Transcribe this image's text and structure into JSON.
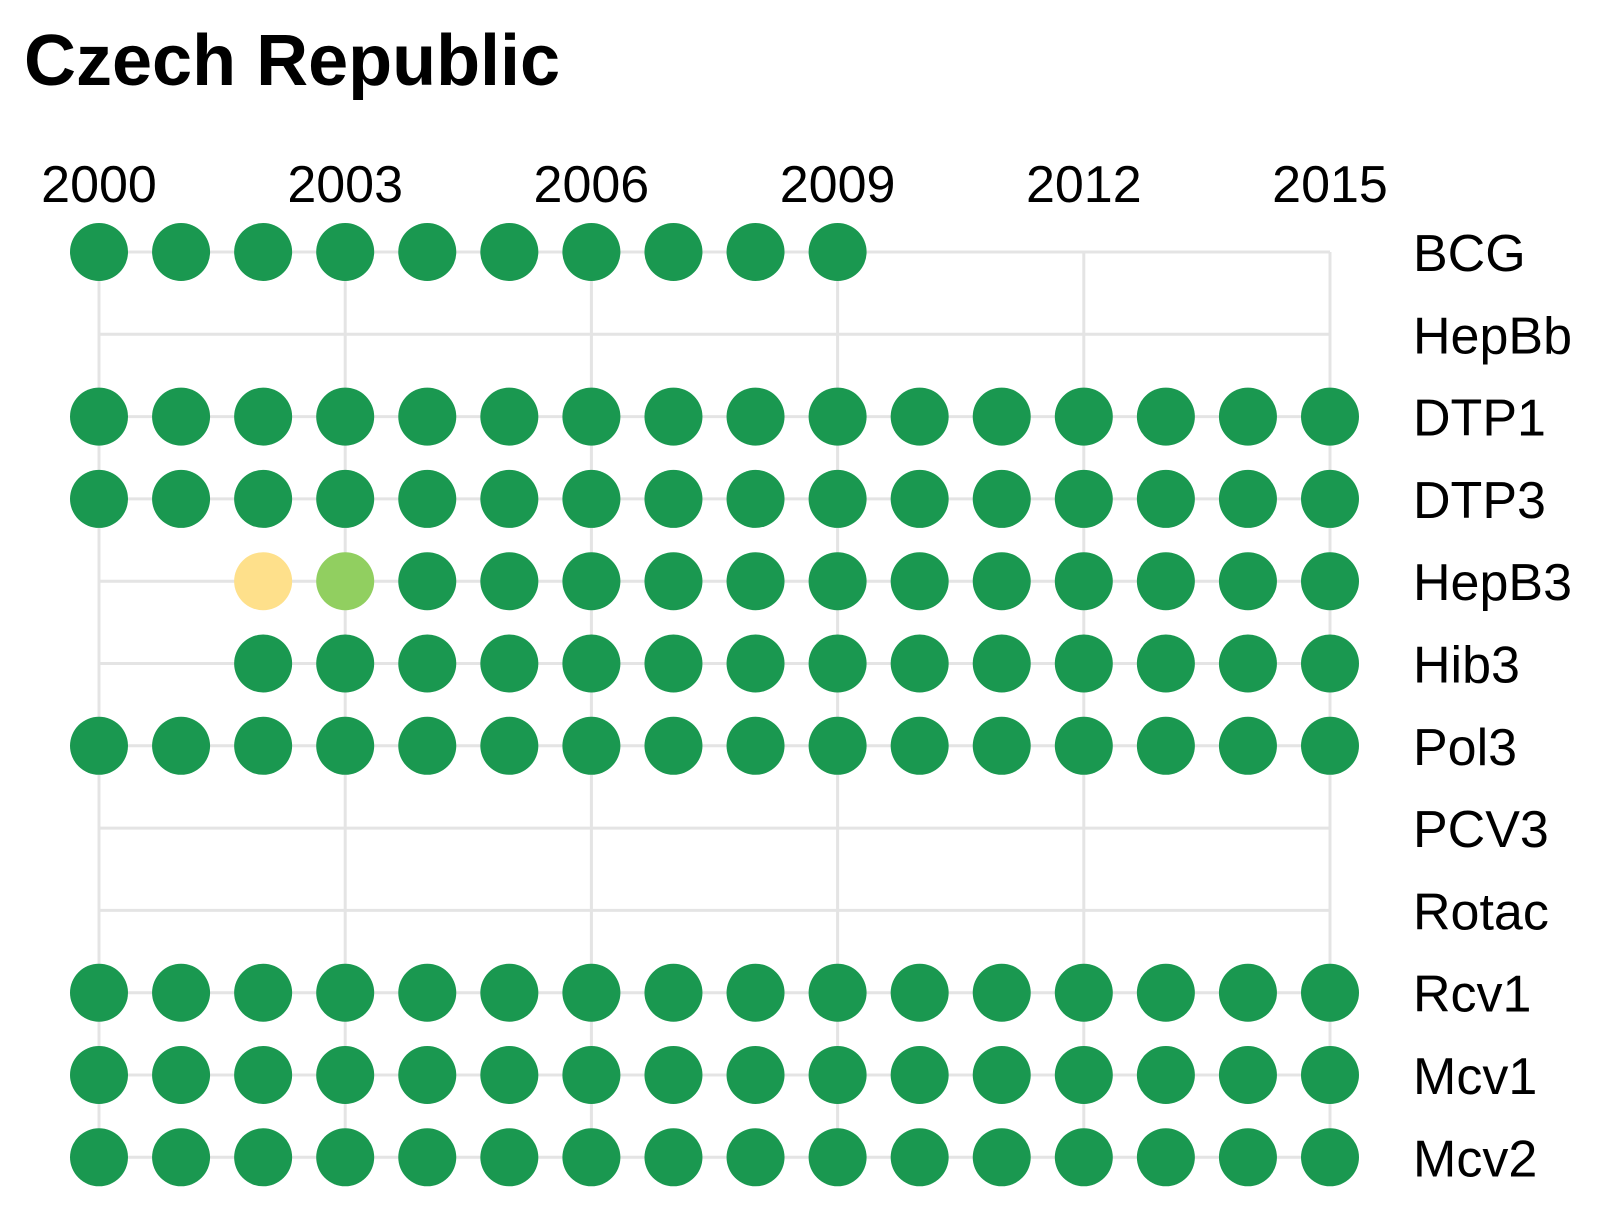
{
  "chart_data": {
    "type": "scatter",
    "title": "Czech Republic",
    "years": [
      2000,
      2001,
      2002,
      2003,
      2004,
      2005,
      2006,
      2007,
      2008,
      2009,
      2010,
      2011,
      2012,
      2013,
      2014,
      2015
    ],
    "x_tick_labels": [
      "2000",
      "2003",
      "2006",
      "2009",
      "2012",
      "2015"
    ],
    "x_tick_values": [
      2000,
      2003,
      2006,
      2009,
      2012,
      2015
    ],
    "xlim": [
      2000,
      2015
    ],
    "grid": true,
    "colors": {
      "grid": "#e4e4e4",
      "high": "#1a9850",
      "medium": "#91cf60",
      "low": "#fee08b"
    },
    "series": [
      {
        "name": "BCG",
        "points": [
          [
            2000,
            "high"
          ],
          [
            2001,
            "high"
          ],
          [
            2002,
            "high"
          ],
          [
            2003,
            "high"
          ],
          [
            2004,
            "high"
          ],
          [
            2005,
            "high"
          ],
          [
            2006,
            "high"
          ],
          [
            2007,
            "high"
          ],
          [
            2008,
            "high"
          ],
          [
            2009,
            "high"
          ]
        ]
      },
      {
        "name": "HepBb",
        "points": []
      },
      {
        "name": "DTP1",
        "points": [
          [
            2000,
            "high"
          ],
          [
            2001,
            "high"
          ],
          [
            2002,
            "high"
          ],
          [
            2003,
            "high"
          ],
          [
            2004,
            "high"
          ],
          [
            2005,
            "high"
          ],
          [
            2006,
            "high"
          ],
          [
            2007,
            "high"
          ],
          [
            2008,
            "high"
          ],
          [
            2009,
            "high"
          ],
          [
            2010,
            "high"
          ],
          [
            2011,
            "high"
          ],
          [
            2012,
            "high"
          ],
          [
            2013,
            "high"
          ],
          [
            2014,
            "high"
          ],
          [
            2015,
            "high"
          ]
        ]
      },
      {
        "name": "DTP3",
        "points": [
          [
            2000,
            "high"
          ],
          [
            2001,
            "high"
          ],
          [
            2002,
            "high"
          ],
          [
            2003,
            "high"
          ],
          [
            2004,
            "high"
          ],
          [
            2005,
            "high"
          ],
          [
            2006,
            "high"
          ],
          [
            2007,
            "high"
          ],
          [
            2008,
            "high"
          ],
          [
            2009,
            "high"
          ],
          [
            2010,
            "high"
          ],
          [
            2011,
            "high"
          ],
          [
            2012,
            "high"
          ],
          [
            2013,
            "high"
          ],
          [
            2014,
            "high"
          ],
          [
            2015,
            "high"
          ]
        ]
      },
      {
        "name": "HepB3",
        "points": [
          [
            2002,
            "low"
          ],
          [
            2003,
            "medium"
          ],
          [
            2004,
            "high"
          ],
          [
            2005,
            "high"
          ],
          [
            2006,
            "high"
          ],
          [
            2007,
            "high"
          ],
          [
            2008,
            "high"
          ],
          [
            2009,
            "high"
          ],
          [
            2010,
            "high"
          ],
          [
            2011,
            "high"
          ],
          [
            2012,
            "high"
          ],
          [
            2013,
            "high"
          ],
          [
            2014,
            "high"
          ],
          [
            2015,
            "high"
          ]
        ]
      },
      {
        "name": "Hib3",
        "points": [
          [
            2002,
            "high"
          ],
          [
            2003,
            "high"
          ],
          [
            2004,
            "high"
          ],
          [
            2005,
            "high"
          ],
          [
            2006,
            "high"
          ],
          [
            2007,
            "high"
          ],
          [
            2008,
            "high"
          ],
          [
            2009,
            "high"
          ],
          [
            2010,
            "high"
          ],
          [
            2011,
            "high"
          ],
          [
            2012,
            "high"
          ],
          [
            2013,
            "high"
          ],
          [
            2014,
            "high"
          ],
          [
            2015,
            "high"
          ]
        ]
      },
      {
        "name": "Pol3",
        "points": [
          [
            2000,
            "high"
          ],
          [
            2001,
            "high"
          ],
          [
            2002,
            "high"
          ],
          [
            2003,
            "high"
          ],
          [
            2004,
            "high"
          ],
          [
            2005,
            "high"
          ],
          [
            2006,
            "high"
          ],
          [
            2007,
            "high"
          ],
          [
            2008,
            "high"
          ],
          [
            2009,
            "high"
          ],
          [
            2010,
            "high"
          ],
          [
            2011,
            "high"
          ],
          [
            2012,
            "high"
          ],
          [
            2013,
            "high"
          ],
          [
            2014,
            "high"
          ],
          [
            2015,
            "high"
          ]
        ]
      },
      {
        "name": "PCV3",
        "points": []
      },
      {
        "name": "Rotac",
        "points": []
      },
      {
        "name": "Rcv1",
        "points": [
          [
            2000,
            "high"
          ],
          [
            2001,
            "high"
          ],
          [
            2002,
            "high"
          ],
          [
            2003,
            "high"
          ],
          [
            2004,
            "high"
          ],
          [
            2005,
            "high"
          ],
          [
            2006,
            "high"
          ],
          [
            2007,
            "high"
          ],
          [
            2008,
            "high"
          ],
          [
            2009,
            "high"
          ],
          [
            2010,
            "high"
          ],
          [
            2011,
            "high"
          ],
          [
            2012,
            "high"
          ],
          [
            2013,
            "high"
          ],
          [
            2014,
            "high"
          ],
          [
            2015,
            "high"
          ]
        ]
      },
      {
        "name": "Mcv1",
        "points": [
          [
            2000,
            "high"
          ],
          [
            2001,
            "high"
          ],
          [
            2002,
            "high"
          ],
          [
            2003,
            "high"
          ],
          [
            2004,
            "high"
          ],
          [
            2005,
            "high"
          ],
          [
            2006,
            "high"
          ],
          [
            2007,
            "high"
          ],
          [
            2008,
            "high"
          ],
          [
            2009,
            "high"
          ],
          [
            2010,
            "high"
          ],
          [
            2011,
            "high"
          ],
          [
            2012,
            "high"
          ],
          [
            2013,
            "high"
          ],
          [
            2014,
            "high"
          ],
          [
            2015,
            "high"
          ]
        ]
      },
      {
        "name": "Mcv2",
        "points": [
          [
            2000,
            "high"
          ],
          [
            2001,
            "high"
          ],
          [
            2002,
            "high"
          ],
          [
            2003,
            "high"
          ],
          [
            2004,
            "high"
          ],
          [
            2005,
            "high"
          ],
          [
            2006,
            "high"
          ],
          [
            2007,
            "high"
          ],
          [
            2008,
            "high"
          ],
          [
            2009,
            "high"
          ],
          [
            2010,
            "high"
          ],
          [
            2011,
            "high"
          ],
          [
            2012,
            "high"
          ],
          [
            2013,
            "high"
          ],
          [
            2014,
            "high"
          ],
          [
            2015,
            "high"
          ]
        ]
      }
    ]
  }
}
